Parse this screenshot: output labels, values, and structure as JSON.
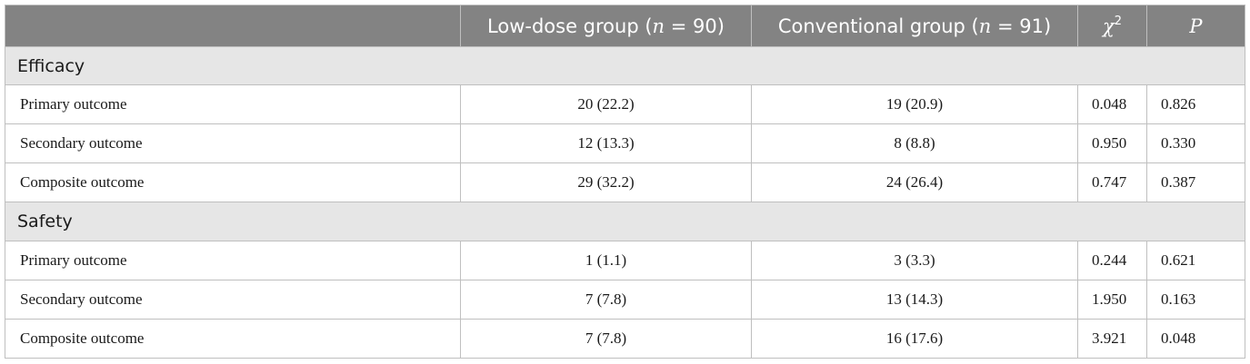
{
  "table": {
    "headers": {
      "c0": "",
      "c1": {
        "text": "Low-dose group (",
        "var": "n",
        "rest": " = 90)"
      },
      "c2": {
        "text": "Conventional group (",
        "var": "n",
        "rest": " = 91)"
      },
      "c3": {
        "base": "χ",
        "sup": "2"
      },
      "c4": "P"
    },
    "sections": [
      {
        "title": "Efficacy",
        "rows": [
          {
            "label": "Primary outcome",
            "low": "20 (22.2)",
            "conv": "19 (20.9)",
            "chi": "0.048",
            "p": "0.826"
          },
          {
            "label": "Secondary outcome",
            "low": "12 (13.3)",
            "conv": "8 (8.8)",
            "chi": "0.950",
            "p": "0.330"
          },
          {
            "label": "Composite outcome",
            "low": "29 (32.2)",
            "conv": "24 (26.4)",
            "chi": "0.747",
            "p": "0.387"
          }
        ]
      },
      {
        "title": "Safety",
        "rows": [
          {
            "label": "Primary outcome",
            "low": "1 (1.1)",
            "conv": "3 (3.3)",
            "chi": "0.244",
            "p": "0.621"
          },
          {
            "label": "Secondary outcome",
            "low": "7 (7.8)",
            "conv": "13 (14.3)",
            "chi": "1.950",
            "p": "0.163"
          },
          {
            "label": "Composite outcome",
            "low": "7 (7.8)",
            "conv": "16 (17.6)",
            "chi": "3.921",
            "p": "0.048"
          }
        ]
      }
    ]
  }
}
